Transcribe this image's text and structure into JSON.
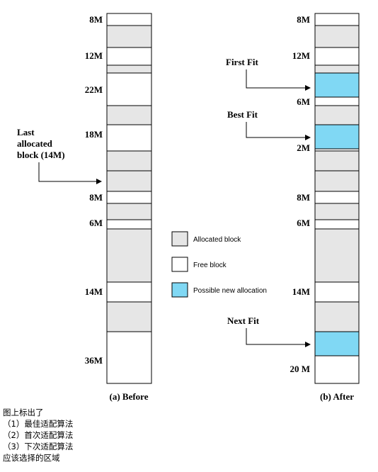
{
  "before": {
    "caption": "(a) Before",
    "size_labels": [
      "8M",
      "12M",
      "22M",
      "18M",
      "8M",
      "6M",
      "14M",
      "36M"
    ],
    "annotation": [
      "Last",
      "allocated",
      "block (14M)"
    ]
  },
  "after": {
    "caption": "(b) After",
    "size_labels": [
      "8M",
      "12M",
      "6M",
      "2M",
      "8M",
      "6M",
      "14M",
      "20 M"
    ],
    "annotations": {
      "first_fit": "First Fit",
      "best_fit": "Best Fit",
      "next_fit": "Next Fit"
    }
  },
  "legend": {
    "allocated": "Allocated block",
    "free": "Free block",
    "possible": "Possible new allocation"
  },
  "colors": {
    "allocated": "#e6e6e6",
    "free": "#ffffff",
    "possible_new": "#80d8f4"
  },
  "notes": [
    "图上标出了",
    "（1）最佳适配算法",
    "（2）首次适配算法",
    "（3）下次适配算法",
    "应该选择的区域"
  ]
}
